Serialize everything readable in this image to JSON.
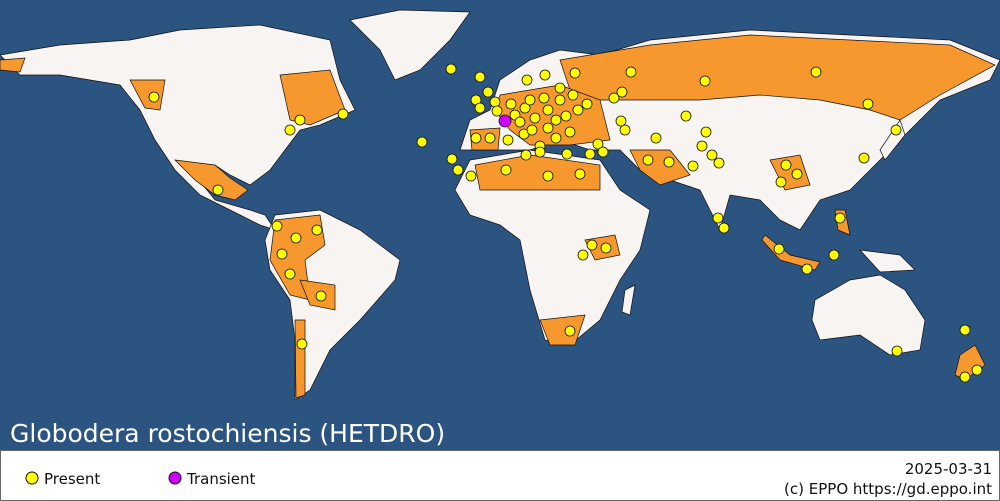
{
  "map": {
    "title": "Globodera rostochiensis (HETDRO)"
  },
  "legend": {
    "items": [
      "Present",
      "Transient"
    ]
  },
  "footer": {
    "date": "2025-03-31",
    "credit": "(c) EPPO https://gd.eppo.int"
  }
}
